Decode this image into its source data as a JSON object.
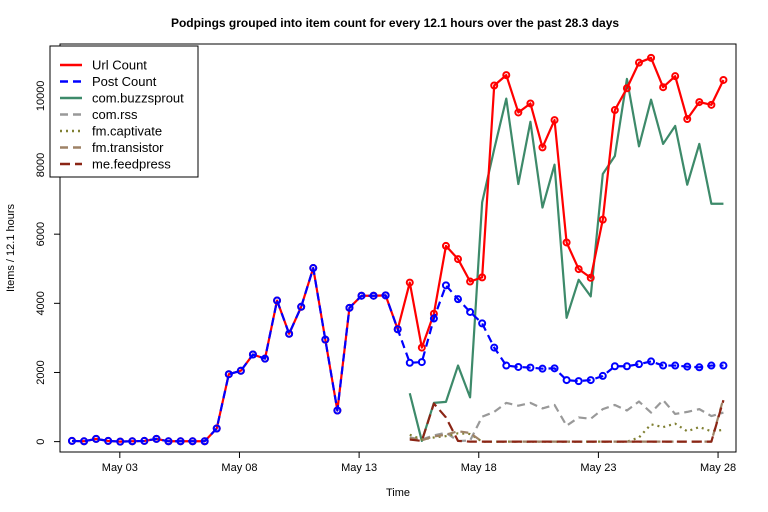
{
  "chart_data": {
    "type": "line",
    "title": "Podpings grouped into item count for every 12.1 hours  over the past 28.3 days",
    "xlabel": "Time",
    "ylabel": "Items / 12.1 hours",
    "xlim": [
      "2023-04-30T12:00",
      "2023-05-28T18:00"
    ],
    "ylim": [
      -300,
      11500
    ],
    "x_ticks": [
      "May 03",
      "May 08",
      "May 13",
      "May 18",
      "May 23",
      "May 28"
    ],
    "y_ticks": [
      0,
      2000,
      4000,
      6000,
      8000,
      10000
    ],
    "legend_position": "top-left",
    "series": [
      {
        "name": "Url Count",
        "color": "#ff0000",
        "style": "solid-with-circles",
        "x": [
          "2023-05-01T00:00",
          "2023-05-01T12:06",
          "2023-05-02T00:12",
          "2023-05-02T12:18",
          "2023-05-03T00:24",
          "2023-05-03T12:30",
          "2023-05-04T00:36",
          "2023-05-04T12:42",
          "2023-05-05T00:48",
          "2023-05-05T12:54",
          "2023-05-06T01:00",
          "2023-05-06T13:06",
          "2023-05-07T01:12",
          "2023-05-07T13:18",
          "2023-05-08T01:24",
          "2023-05-08T13:30",
          "2023-05-09T01:36",
          "2023-05-09T13:42",
          "2023-05-10T01:48",
          "2023-05-10T13:54",
          "2023-05-11T02:00",
          "2023-05-11T14:06",
          "2023-05-12T02:12",
          "2023-05-12T14:18",
          "2023-05-13T02:24",
          "2023-05-13T14:30",
          "2023-05-14T02:36",
          "2023-05-14T14:42",
          "2023-05-15T02:48",
          "2023-05-15T14:54",
          "2023-05-16T03:00",
          "2023-05-16T15:06",
          "2023-05-17T03:12",
          "2023-05-17T15:18",
          "2023-05-18T03:24",
          "2023-05-18T15:30",
          "2023-05-19T03:36",
          "2023-05-19T15:42",
          "2023-05-20T03:48",
          "2023-05-20T15:54",
          "2023-05-21T04:00",
          "2023-05-21T16:06",
          "2023-05-22T04:12",
          "2023-05-22T16:18",
          "2023-05-23T04:24",
          "2023-05-23T16:30",
          "2023-05-24T04:36",
          "2023-05-24T16:42",
          "2023-05-25T04:48",
          "2023-05-25T16:54",
          "2023-05-26T05:00",
          "2023-05-26T17:06",
          "2023-05-27T05:12",
          "2023-05-27T17:18",
          "2023-05-28T05:24"
        ],
        "values": [
          20,
          10,
          80,
          20,
          0,
          10,
          20,
          80,
          10,
          10,
          10,
          10,
          380,
          1950,
          2050,
          2520,
          2400,
          4080,
          3120,
          3900,
          5020,
          2950,
          900,
          3870,
          4220,
          4220,
          4230,
          3250,
          4600,
          2720,
          3700,
          5660,
          5280,
          4630,
          4750,
          10300,
          10600,
          9520,
          9780,
          8510,
          9300,
          5760,
          4990,
          4740,
          6420,
          9590,
          10220,
          10960,
          11100,
          10250,
          10570,
          9330,
          9820,
          9740,
          10460
        ]
      },
      {
        "name": "Post Count",
        "color": "#0000ff",
        "style": "dashed-with-circles",
        "x": [
          "2023-05-01T00:00",
          "2023-05-01T12:06",
          "2023-05-02T00:12",
          "2023-05-02T12:18",
          "2023-05-03T00:24",
          "2023-05-03T12:30",
          "2023-05-04T00:36",
          "2023-05-04T12:42",
          "2023-05-05T00:48",
          "2023-05-05T12:54",
          "2023-05-06T01:00",
          "2023-05-06T13:06",
          "2023-05-07T01:12",
          "2023-05-07T13:18",
          "2023-05-08T01:24",
          "2023-05-08T13:30",
          "2023-05-09T01:36",
          "2023-05-09T13:42",
          "2023-05-10T01:48",
          "2023-05-10T13:54",
          "2023-05-11T02:00",
          "2023-05-11T14:06",
          "2023-05-12T02:12",
          "2023-05-12T14:18",
          "2023-05-13T02:24",
          "2023-05-13T14:30",
          "2023-05-14T02:36",
          "2023-05-14T14:42",
          "2023-05-15T02:48",
          "2023-05-15T14:54",
          "2023-05-16T03:00",
          "2023-05-16T15:06",
          "2023-05-17T03:12",
          "2023-05-17T15:18",
          "2023-05-18T03:24",
          "2023-05-18T15:30",
          "2023-05-19T03:36",
          "2023-05-19T15:42",
          "2023-05-20T03:48",
          "2023-05-20T15:54",
          "2023-05-21T04:00",
          "2023-05-21T16:06",
          "2023-05-22T04:12",
          "2023-05-22T16:18",
          "2023-05-23T04:24",
          "2023-05-23T16:30",
          "2023-05-24T04:36",
          "2023-05-24T16:42",
          "2023-05-25T04:48",
          "2023-05-25T16:54",
          "2023-05-26T05:00",
          "2023-05-26T17:06",
          "2023-05-27T05:12",
          "2023-05-27T17:18",
          "2023-05-28T05:24"
        ],
        "values": [
          20,
          10,
          80,
          20,
          0,
          10,
          20,
          80,
          10,
          10,
          10,
          10,
          380,
          1950,
          2050,
          2520,
          2400,
          4080,
          3120,
          3900,
          5020,
          2950,
          900,
          3870,
          4220,
          4220,
          4230,
          3250,
          2280,
          2300,
          3560,
          4520,
          4120,
          3750,
          3420,
          2720,
          2200,
          2160,
          2140,
          2110,
          2120,
          1780,
          1750,
          1780,
          1900,
          2180,
          2180,
          2240,
          2320,
          2200,
          2200,
          2170,
          2150,
          2200,
          2200
        ]
      },
      {
        "name": "com.buzzsprout",
        "color": "#3d8a6a",
        "style": "solid",
        "x": [
          "2023-05-15T02:48",
          "2023-05-15T14:54",
          "2023-05-16T03:00",
          "2023-05-16T15:06",
          "2023-05-17T03:12",
          "2023-05-17T15:18",
          "2023-05-18T03:24",
          "2023-05-18T15:30",
          "2023-05-19T03:36",
          "2023-05-19T15:42",
          "2023-05-20T03:48",
          "2023-05-20T15:54",
          "2023-05-21T04:00",
          "2023-05-21T16:06",
          "2023-05-22T04:12",
          "2023-05-22T16:18",
          "2023-05-23T04:24",
          "2023-05-23T16:30",
          "2023-05-24T04:36",
          "2023-05-24T16:42",
          "2023-05-25T04:48",
          "2023-05-25T16:54",
          "2023-05-26T05:00",
          "2023-05-26T17:06",
          "2023-05-27T05:12",
          "2023-05-27T17:18",
          "2023-05-28T05:24"
        ],
        "values": [
          1400,
          20,
          1120,
          1150,
          2200,
          1280,
          6920,
          8460,
          9920,
          7450,
          9250,
          6770,
          8010,
          3580,
          4680,
          4200,
          7740,
          8260,
          10490,
          8540,
          9890,
          8610,
          9130,
          7430,
          8610,
          6880,
          6880
        ]
      },
      {
        "name": "com.rss",
        "color": "#999999",
        "style": "dashed",
        "x": [
          "2023-05-15T02:48",
          "2023-05-15T14:54",
          "2023-05-16T03:00",
          "2023-05-16T15:06",
          "2023-05-17T03:12",
          "2023-05-17T15:18",
          "2023-05-18T03:24",
          "2023-05-18T15:30",
          "2023-05-19T03:36",
          "2023-05-19T15:42",
          "2023-05-20T03:48",
          "2023-05-20T15:54",
          "2023-05-21T04:00",
          "2023-05-21T16:06",
          "2023-05-22T04:12",
          "2023-05-22T16:18",
          "2023-05-23T04:24",
          "2023-05-23T16:30",
          "2023-05-24T04:36",
          "2023-05-24T16:42",
          "2023-05-25T04:48",
          "2023-05-25T16:54",
          "2023-05-26T05:00",
          "2023-05-26T17:06",
          "2023-05-27T05:12",
          "2023-05-27T17:18",
          "2023-05-28T05:24"
        ],
        "values": [
          120,
          60,
          180,
          260,
          20,
          30,
          720,
          860,
          1120,
          1040,
          1120,
          960,
          1060,
          460,
          700,
          660,
          940,
          1060,
          900,
          1160,
          840,
          1200,
          800,
          860,
          940,
          740,
          840
        ]
      },
      {
        "name": "fm.captivate",
        "color": "#808033",
        "style": "dotted",
        "x": [
          "2023-05-15T02:48",
          "2023-05-15T14:54",
          "2023-05-16T03:00",
          "2023-05-16T15:06",
          "2023-05-17T03:12",
          "2023-05-17T15:18",
          "2023-05-18T03:24",
          "2023-05-18T15:30",
          "2023-05-19T03:36",
          "2023-05-19T15:42",
          "2023-05-20T03:48",
          "2023-05-20T15:54",
          "2023-05-21T04:00",
          "2023-05-21T16:06",
          "2023-05-22T04:12",
          "2023-05-22T16:18",
          "2023-05-23T04:24",
          "2023-05-23T16:30",
          "2023-05-24T04:36",
          "2023-05-24T16:42",
          "2023-05-25T04:48",
          "2023-05-25T16:54",
          "2023-05-26T05:00",
          "2023-05-26T17:06",
          "2023-05-27T05:12",
          "2023-05-27T17:18",
          "2023-05-28T05:24"
        ],
        "values": [
          200,
          60,
          120,
          160,
          240,
          220,
          0,
          0,
          0,
          0,
          0,
          0,
          0,
          0,
          0,
          0,
          0,
          0,
          0,
          120,
          500,
          420,
          520,
          300,
          420,
          300,
          340
        ]
      },
      {
        "name": "fm.transistor",
        "color": "#9e8266",
        "style": "dashed",
        "x": [
          "2023-05-15T02:48",
          "2023-05-15T14:54",
          "2023-05-16T03:00",
          "2023-05-16T15:06",
          "2023-05-17T03:12",
          "2023-05-17T15:18",
          "2023-05-18T03:24",
          "2023-05-18T15:30",
          "2023-05-19T03:36",
          "2023-05-19T15:42",
          "2023-05-20T03:48",
          "2023-05-20T15:54",
          "2023-05-21T04:00",
          "2023-05-21T16:06",
          "2023-05-22T04:12",
          "2023-05-22T16:18",
          "2023-05-23T04:24",
          "2023-05-23T16:30",
          "2023-05-24T04:36",
          "2023-05-24T16:42",
          "2023-05-25T04:48",
          "2023-05-25T16:54",
          "2023-05-26T05:00",
          "2023-05-26T17:06",
          "2023-05-27T05:12",
          "2023-05-27T17:18",
          "2023-05-28T05:24"
        ],
        "values": [
          100,
          40,
          150,
          200,
          300,
          250,
          0,
          0,
          0,
          0,
          0,
          0,
          0,
          0,
          0,
          0,
          0,
          0,
          0,
          0,
          0,
          0,
          0,
          0,
          0,
          0,
          1250
        ]
      },
      {
        "name": "me.feedpress",
        "color": "#8b2515",
        "style": "dashed",
        "x": [
          "2023-05-15T02:48",
          "2023-05-15T14:54",
          "2023-05-16T03:00",
          "2023-05-16T15:06",
          "2023-05-17T03:12",
          "2023-05-17T15:18",
          "2023-05-18T03:24",
          "2023-05-18T15:30",
          "2023-05-19T03:36",
          "2023-05-19T15:42",
          "2023-05-20T03:48",
          "2023-05-20T15:54",
          "2023-05-21T04:00",
          "2023-05-21T16:06",
          "2023-05-22T04:12",
          "2023-05-22T16:18",
          "2023-05-23T04:24",
          "2023-05-23T16:30",
          "2023-05-24T04:36",
          "2023-05-24T16:42",
          "2023-05-25T04:48",
          "2023-05-25T16:54",
          "2023-05-26T05:00",
          "2023-05-26T17:06",
          "2023-05-27T05:12",
          "2023-05-27T17:18",
          "2023-05-28T05:24"
        ],
        "values": [
          60,
          20,
          1100,
          700,
          20,
          0,
          0,
          0,
          0,
          0,
          0,
          0,
          0,
          0,
          0,
          0,
          0,
          0,
          0,
          0,
          0,
          0,
          0,
          0,
          0,
          0,
          1200
        ]
      }
    ]
  }
}
